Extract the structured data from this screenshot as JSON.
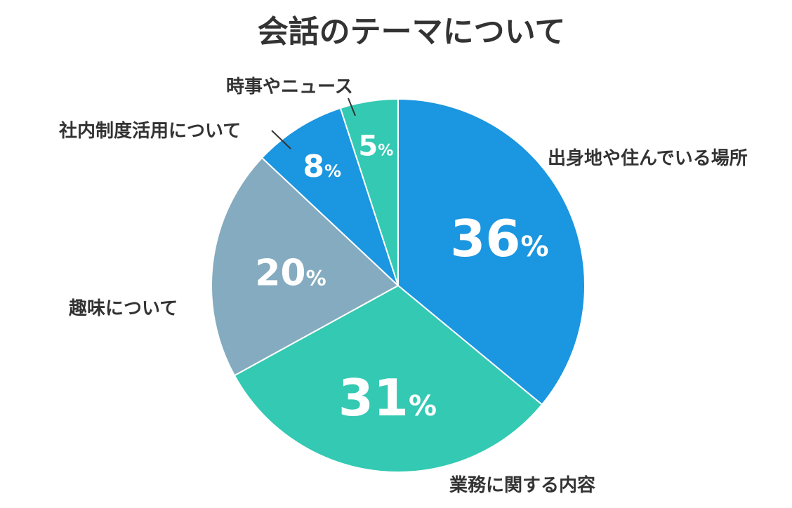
{
  "chart_data": {
    "type": "pie",
    "title": "会話のテーマについて",
    "categories": [
      "出身地や住んでいる場所",
      "業務に関する内容",
      "趣味について",
      "社内制度活用について",
      "時事やニュース"
    ],
    "values": [
      36,
      31,
      20,
      8,
      5
    ],
    "value_suffix": "%",
    "colors": [
      "#1B96E0",
      "#33C9B3",
      "#84ABBF",
      "#1B96E0",
      "#33C9B3"
    ],
    "start": "12 o'clock",
    "direction": "clockwise",
    "legend": "none",
    "labels": "outside with leader lines for small slices"
  }
}
